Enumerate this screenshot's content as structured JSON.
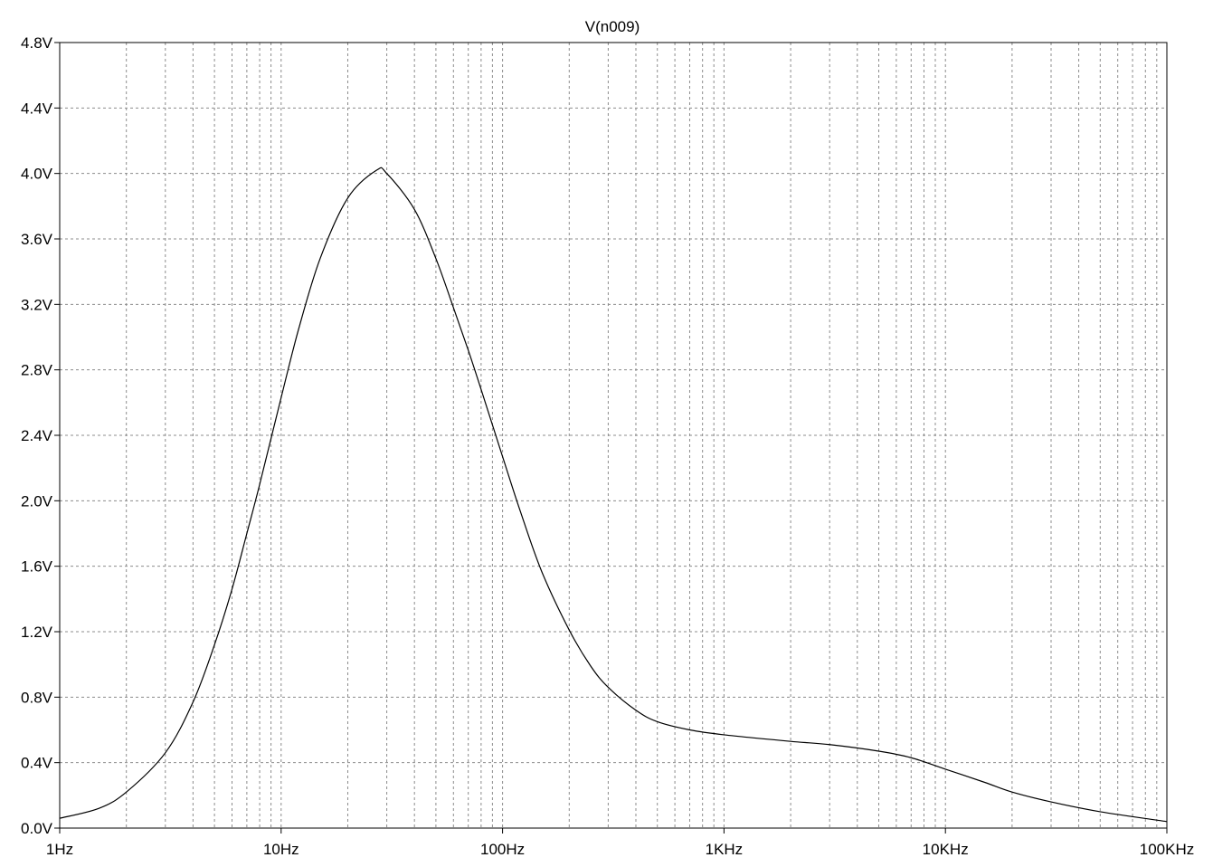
{
  "chart_data": {
    "type": "line",
    "title": "V(n009)",
    "xlabel": "",
    "ylabel": "",
    "x_scale": "log",
    "xlim": [
      1,
      100000
    ],
    "ylim": [
      0,
      4.8
    ],
    "grid": true,
    "x_tick_values": [
      1,
      10,
      100,
      1000,
      10000,
      100000
    ],
    "x_tick_labels": [
      "1Hz",
      "10Hz",
      "100Hz",
      "1KHz",
      "10KHz",
      "100KHz"
    ],
    "y_tick_values": [
      0,
      0.4,
      0.8,
      1.2,
      1.6,
      2.0,
      2.4,
      2.8,
      3.2,
      3.6,
      4.0,
      4.4,
      4.8
    ],
    "y_tick_labels": [
      "0.0V",
      "0.4V",
      "0.8V",
      "1.2V",
      "1.6V",
      "2.0V",
      "2.4V",
      "2.8V",
      "3.2V",
      "3.6V",
      "4.0V",
      "4.4V",
      "4.8V"
    ],
    "series": [
      {
        "color": "#000000",
        "x": [
          1,
          1.5,
          2,
          3,
          4,
          5,
          6,
          7,
          8,
          10,
          12,
          15,
          20,
          27,
          30,
          40,
          50,
          60,
          70,
          80,
          100,
          120,
          150,
          200,
          250,
          300,
          400,
          500,
          700,
          1000,
          2000,
          3000,
          5000,
          7000,
          10000,
          15000,
          20000,
          30000,
          50000,
          100000
        ],
        "y": [
          0.06,
          0.12,
          0.22,
          0.46,
          0.77,
          1.12,
          1.46,
          1.8,
          2.1,
          2.63,
          3.05,
          3.48,
          3.85,
          4.02,
          4.0,
          3.78,
          3.48,
          3.18,
          2.92,
          2.68,
          2.27,
          1.94,
          1.57,
          1.21,
          0.99,
          0.86,
          0.72,
          0.65,
          0.6,
          0.57,
          0.53,
          0.51,
          0.47,
          0.43,
          0.36,
          0.28,
          0.22,
          0.16,
          0.1,
          0.04
        ]
      }
    ]
  }
}
